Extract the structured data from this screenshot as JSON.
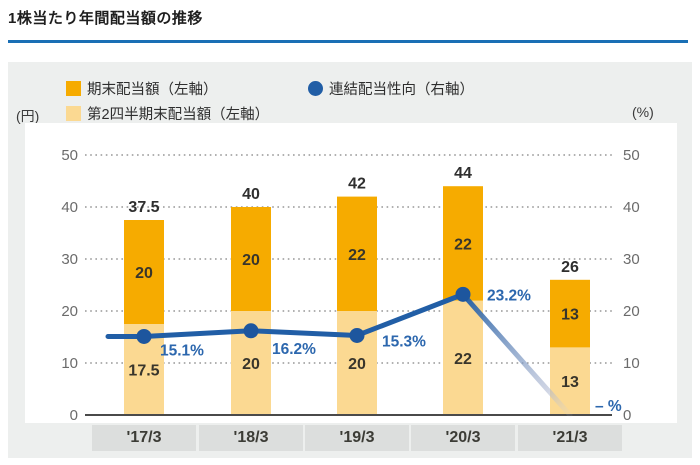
{
  "title": "1株当たり年間配当額の推移",
  "axes": {
    "left_unit": "(円)",
    "right_unit": "(%)"
  },
  "legend": {
    "items": [
      {
        "label": "期末配当額（左軸）",
        "marker": "square",
        "color": "#f6ab00"
      },
      {
        "label": "連結配当性向（右軸）",
        "marker": "circle",
        "color": "#215ea6"
      },
      {
        "label": "第2四半期末配当額（左軸）",
        "marker": "square",
        "color": "#fbd992"
      }
    ]
  },
  "colors": {
    "accent_rule": "#1a6fb5",
    "panel_bg": "#edefee",
    "final_dividend": "#f6ab00",
    "interim_dividend": "#fbd992",
    "payout_line": "#215ea6",
    "payout_label": "#2c67ae",
    "grid": "#979797",
    "axis_line": "#4a4a4a",
    "tick_text": "#6b6b6b",
    "bar_label_text": "#38352b",
    "xlabel_bg": "#dcdedd"
  },
  "chart_data": {
    "type": "combo: stacked bar + line",
    "categories": [
      "'17/3",
      "'18/3",
      "'19/3",
      "'20/3",
      "'21/3"
    ],
    "series": [
      {
        "name": "第2四半期末配当額（左軸）",
        "type": "bar",
        "stack": "dividend",
        "axis": "left",
        "color": "#fbd992",
        "values": [
          17.5,
          20,
          20,
          22,
          13
        ]
      },
      {
        "name": "期末配当額（左軸）",
        "type": "bar",
        "stack": "dividend",
        "axis": "left",
        "color": "#f6ab00",
        "values": [
          20,
          20,
          22,
          22,
          13
        ]
      },
      {
        "name": "連結配当性向（右軸）",
        "type": "line",
        "axis": "right",
        "color": "#215ea6",
        "values": [
          15.1,
          16.2,
          15.3,
          23.2,
          null
        ],
        "point_labels": [
          "15.1%",
          "16.2%",
          "15.3%",
          "23.2%",
          "– %"
        ],
        "note": "last period is an undetermined forecast, line fades to zero"
      }
    ],
    "stack_total_labels": [
      "37.5",
      "40",
      "42",
      "44",
      "26"
    ],
    "left_axis": {
      "unit": "円",
      "min": 0,
      "max": 50,
      "ticks": [
        0,
        10,
        20,
        30,
        40,
        50
      ]
    },
    "right_axis": {
      "unit": "%",
      "min": 0,
      "max": 50,
      "ticks": [
        0,
        10,
        20,
        30,
        40,
        50
      ]
    },
    "grid": "horizontal dotted",
    "legend_position": "top-left"
  }
}
